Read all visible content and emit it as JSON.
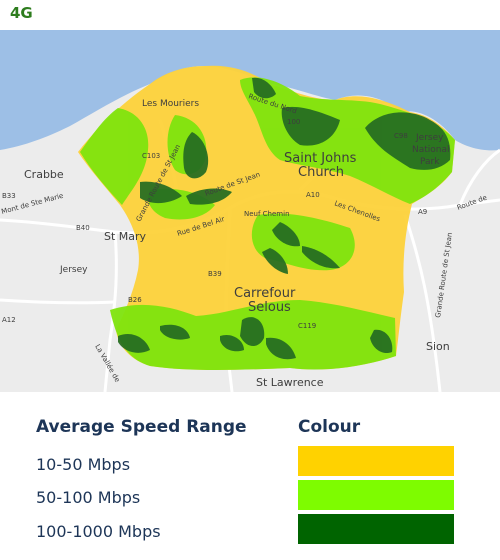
{
  "title": "4G",
  "map": {
    "places": {
      "les_mouriers": "Les Mouriers",
      "saint_johns": "Saint Johns",
      "church": "Church",
      "crabbe": "Crabbe",
      "mont_de_ste_marie": "Mont de Ste Marie",
      "st_mary": "St Mary",
      "jersey_west": "Jersey",
      "carrefour": "Carrefour",
      "selous": "Selous",
      "sion": "Sion",
      "st_lawrence": "St Lawrence",
      "jersey_national": "Jersey",
      "national": "National",
      "park": "Park"
    },
    "roads": {
      "c103": "C103",
      "a10": "A10",
      "a9": "A9",
      "b33": "B33",
      "b40": "B40",
      "b26": "B26",
      "b39": "B39",
      "c119": "C119",
      "road100": "100",
      "c98": "C98",
      "a12": "A12",
      "rue_de_bel_air": "Rue de Bel Air",
      "neuf_chemin": "Neuf Chemin",
      "les_chenolles": "Les Chenolles",
      "grande_route_de_st_jean": "Grande Route de St Jean",
      "route_de_st_jean": "Route de St Jean",
      "la_vallee_de": "La Vallée de",
      "route_du_nord": "Route du Nord",
      "route_de_right": "Route de",
      "grande_route_de_st_jean_right": "Grande Route de St Jean"
    },
    "colors": {
      "sea": "#9dbfe6",
      "land": "#ececec",
      "speed_10_50": "#fdd23a",
      "speed_50_100": "#7fe40e",
      "speed_100_1000": "#246b22"
    }
  },
  "legend": {
    "range_header": "Average Speed Range",
    "colour_header": "Colour",
    "items": [
      {
        "label": "10-50 Mbps",
        "color": "#ffd200"
      },
      {
        "label": "50-100 Mbps",
        "color": "#7efc00"
      },
      {
        "label": "100-1000 Mbps",
        "color": "#006400"
      }
    ]
  }
}
